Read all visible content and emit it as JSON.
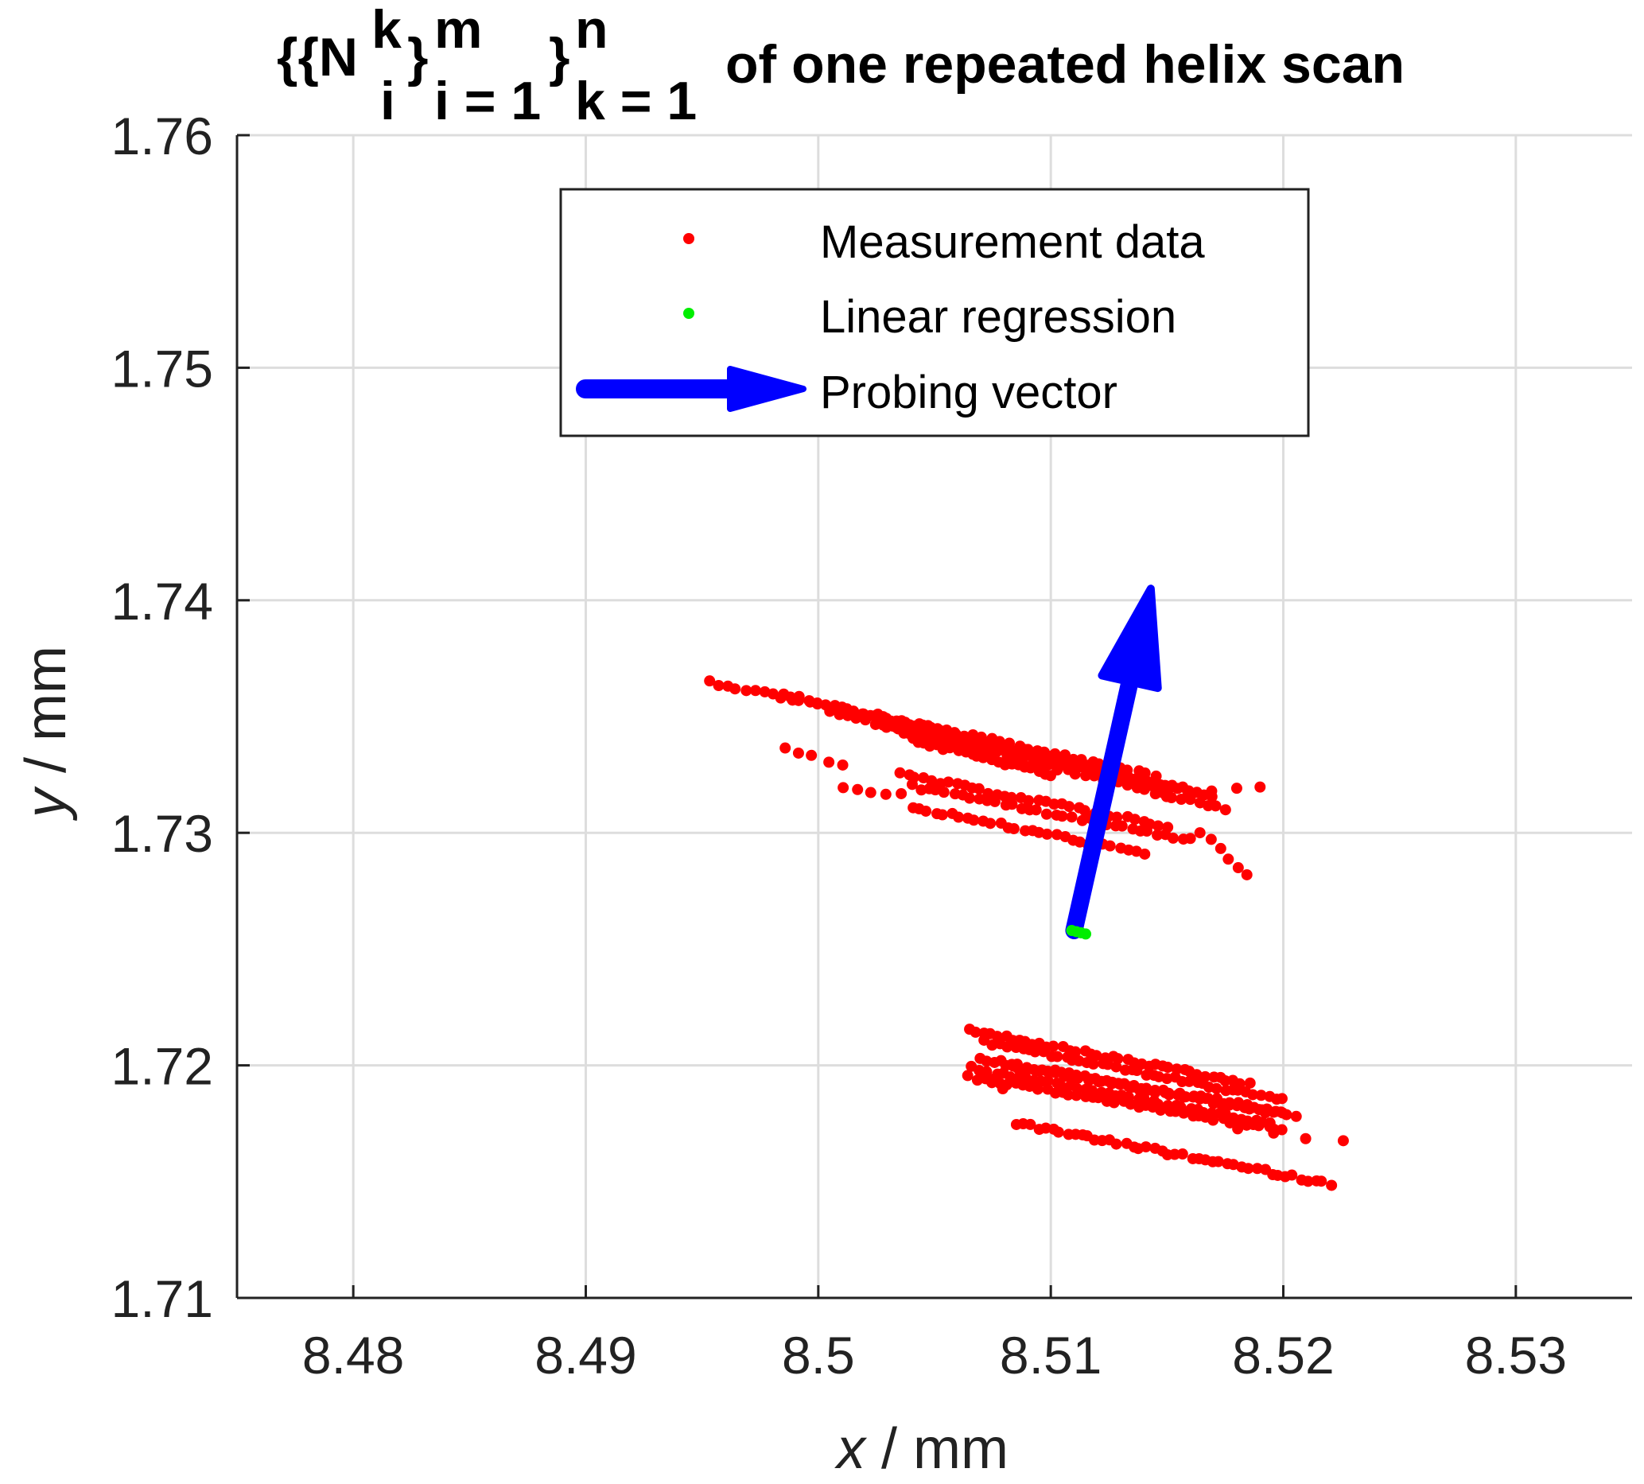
{
  "chart_data": {
    "type": "scatter",
    "title": {
      "symbol": "{{N",
      "sup_k": "k",
      "sub_i": "i",
      "close1": "}",
      "sup_m": "m",
      "sub_i1": "i = 1",
      "close2": "}",
      "sup_n": "n",
      "sub_k1": "k = 1",
      "rest": "of one repeated helix scan"
    },
    "xlabel": {
      "var": "x",
      "unit": " / mm"
    },
    "ylabel": {
      "var": "y",
      "unit": " / mm"
    },
    "xlim": [
      8.475,
      8.535
    ],
    "ylim": [
      1.71,
      1.76
    ],
    "xticks": [
      8.48,
      8.49,
      8.5,
      8.51,
      8.52,
      8.53
    ],
    "xtick_labels": [
      "8.48",
      "8.49",
      "8.5",
      "8.51",
      "8.52",
      "8.53"
    ],
    "yticks": [
      1.71,
      1.72,
      1.73,
      1.74,
      1.75,
      1.76
    ],
    "ytick_labels": [
      "1.71",
      "1.72",
      "1.73",
      "1.74",
      "1.75",
      "1.76"
    ],
    "grid": true,
    "legend": {
      "placement": "top-center",
      "entries": [
        "Measurement data",
        "Linear regression",
        "Probing vector"
      ]
    },
    "colors": {
      "measurement": "#ff0000",
      "regression": "#00ee00",
      "vector": "#0000ff",
      "grid": "#dddddd",
      "axis": "#222222"
    },
    "series": [
      {
        "name": "Measurement data",
        "segments": [
          {
            "from": [
              8.4953,
              1.7365
            ],
            "to": [
              8.5145,
              1.7325
            ],
            "n": 50
          },
          {
            "from": [
              8.4985,
              1.736
            ],
            "to": [
              8.516,
              1.7318
            ],
            "n": 48
          },
          {
            "from": [
              8.5005,
              1.7352
            ],
            "to": [
              8.5175,
              1.731
            ],
            "n": 46
          },
          {
            "from": [
              8.5025,
              1.7348
            ],
            "to": [
              8.517,
              1.7315
            ],
            "n": 40
          },
          {
            "from": [
              8.503,
              1.7345
            ],
            "to": [
              8.515,
              1.732
            ],
            "n": 36
          },
          {
            "from": [
              8.504,
              1.734
            ],
            "to": [
              8.51,
              1.7325
            ],
            "n": 22
          },
          {
            "from": [
              8.5035,
              1.7325
            ],
            "to": [
              8.515,
              1.7303
            ],
            "n": 34
          },
          {
            "from": [
              8.504,
              1.732
            ],
            "to": [
              8.516,
              1.7297
            ],
            "n": 34
          },
          {
            "from": [
              8.504,
              1.7311
            ],
            "to": [
              8.514,
              1.7291
            ],
            "n": 30
          },
          {
            "from": [
              8.4985,
              1.7336
            ],
            "to": [
              8.501,
              1.7329
            ],
            "n": 5
          },
          {
            "from": [
              8.501,
              1.732
            ],
            "to": [
              8.5035,
              1.7316
            ],
            "n": 5
          },
          {
            "from": [
              8.5165,
              1.73
            ],
            "to": [
              8.5185,
              1.7282
            ],
            "n": 6
          },
          {
            "from": [
              8.515,
              1.7315
            ],
            "to": [
              8.519,
              1.732
            ],
            "n": 5
          },
          {
            "from": [
              8.5065,
              1.7215
            ],
            "to": [
              8.5185,
              1.7192
            ],
            "n": 40
          },
          {
            "from": [
              8.5072,
              1.721
            ],
            "to": [
              8.52,
              1.7185
            ],
            "n": 42
          },
          {
            "from": [
              8.507,
              1.7203
            ],
            "to": [
              8.5205,
              1.7178
            ],
            "n": 44
          },
          {
            "from": [
              8.507,
              1.7198
            ],
            "to": [
              8.5195,
              1.7175
            ],
            "n": 40
          },
          {
            "from": [
              8.5065,
              1.7195
            ],
            "to": [
              8.52,
              1.7172
            ],
            "n": 42
          },
          {
            "from": [
              8.508,
              1.72
            ],
            "to": [
              8.52,
              1.718
            ],
            "n": 38
          },
          {
            "from": [
              8.5085,
              1.7175
            ],
            "to": [
              8.522,
              1.7149
            ],
            "n": 44
          },
          {
            "from": [
              8.518,
              1.7172
            ],
            "to": [
              8.5225,
              1.7168
            ],
            "n": 4
          },
          {
            "from": [
              8.5065,
              1.72
            ],
            "to": [
              8.508,
              1.719
            ],
            "n": 4
          }
        ]
      },
      {
        "name": "Linear regression",
        "points": [
          [
            8.5109,
            1.7258
          ],
          [
            8.5111,
            1.72575
          ],
          [
            8.5113,
            1.7257
          ],
          [
            8.5115,
            1.72565
          ]
        ]
      },
      {
        "name": "Probing vector",
        "start": [
          8.511,
          1.7258
        ],
        "end": [
          8.5143,
          1.7405
        ]
      }
    ]
  }
}
